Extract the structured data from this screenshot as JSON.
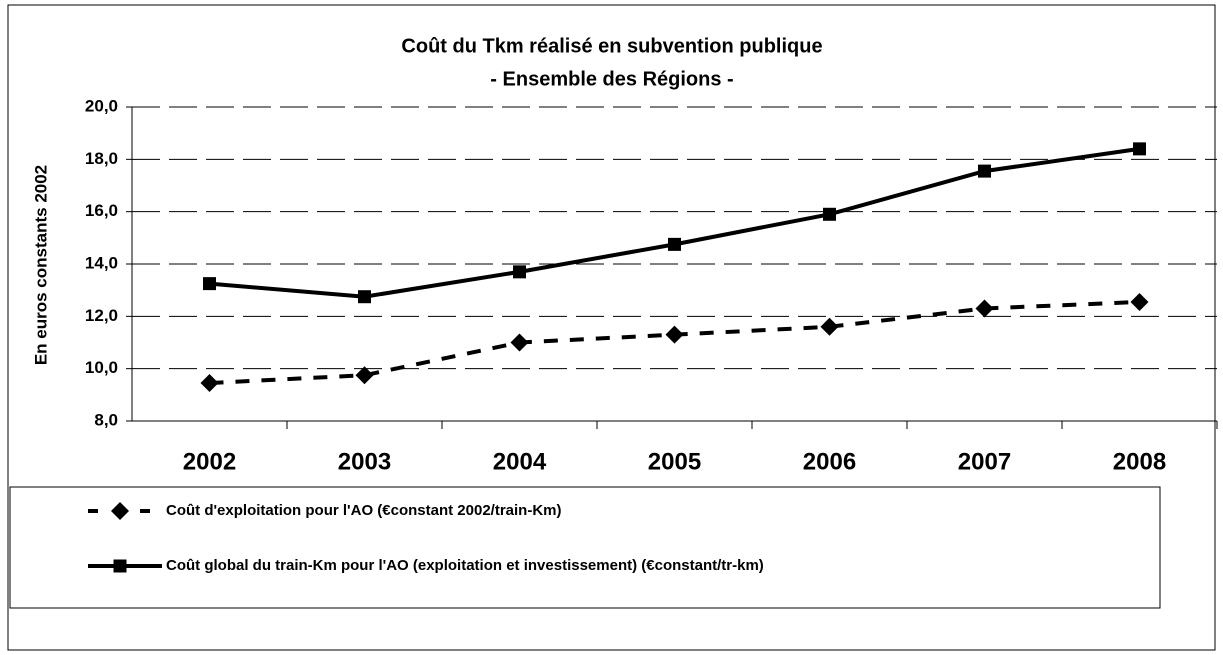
{
  "chart_data": {
    "type": "line",
    "title": "Coût du Tkm réalisé en subvention publique",
    "subtitle": "- Ensemble des Régions -",
    "y_label": "En euros constants 2002",
    "categories": [
      "2002",
      "2003",
      "2004",
      "2005",
      "2006",
      "2007",
      "2008"
    ],
    "series": [
      {
        "name": "Coût d'exploitation pour l'AO (€constant 2002/train-Km)",
        "color": "#000000",
        "line_style": "dashed",
        "marker": "diamond",
        "values": [
          9.45,
          9.75,
          11.0,
          11.3,
          11.6,
          12.3,
          12.55
        ]
      },
      {
        "name": "Coût global du train-Km pour l'AO (exploitation et investissement) (€constant/tr-km)",
        "color": "#000000",
        "line_style": "solid",
        "marker": "square",
        "values": [
          13.25,
          12.75,
          13.7,
          14.75,
          15.9,
          17.55,
          18.4
        ]
      }
    ],
    "ylim": [
      8,
      20
    ],
    "yticks": [
      {
        "value": 8,
        "label": "8,0"
      },
      {
        "value": 10,
        "label": "10,0"
      },
      {
        "value": 12,
        "label": "12,0"
      },
      {
        "value": 14,
        "label": "14,0"
      },
      {
        "value": 16,
        "label": "16,0"
      },
      {
        "value": 18,
        "label": "18,0"
      },
      {
        "value": 20,
        "label": "20,0"
      }
    ],
    "grid": true
  }
}
